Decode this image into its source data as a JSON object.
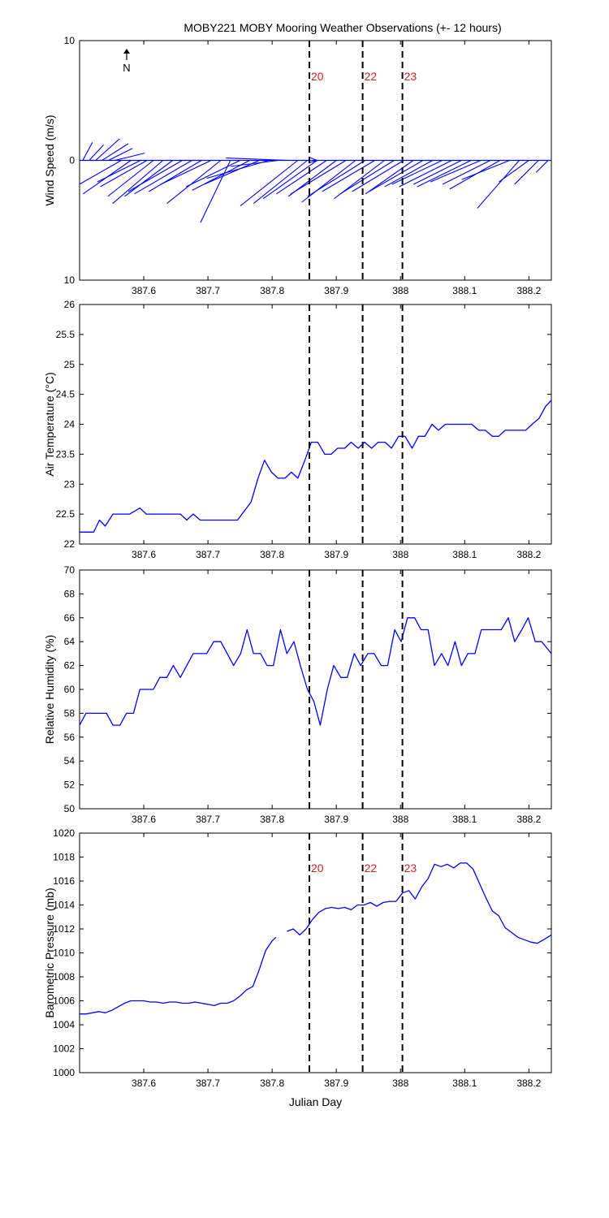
{
  "title": "MOBY221 MOBY Mooring Weather Observations (+- 12 hours)",
  "colors": {
    "series": "#0000ff",
    "event_label": "#cc2222",
    "axes": "#000000"
  },
  "chart_data": [
    {
      "id": "wind",
      "type": "line",
      "ylabel": "Wind Speed (m/s)",
      "xlabel": "",
      "xlim": [
        387.5,
        388.235
      ],
      "ylim": [
        -10,
        10
      ],
      "yticks": [
        -10,
        0,
        10
      ],
      "ytick_labels": [
        "10",
        "0",
        "10"
      ],
      "xticks": [
        387.6,
        387.7,
        387.8,
        387.9,
        388.0,
        388.1,
        388.2
      ],
      "xtick_labels": [
        "387.6",
        "387.7",
        "387.8",
        "387.9",
        "388",
        "388.1",
        "388.2"
      ],
      "north_label": "N",
      "event_lines": [
        {
          "x": 387.858,
          "label": "20"
        },
        {
          "x": 387.941,
          "label": "22"
        },
        {
          "x": 388.003,
          "label": "23"
        }
      ],
      "vectors": [
        {
          "x": 387.505,
          "u": -0.8,
          "v": 1.5
        },
        {
          "x": 387.515,
          "u": -1.2,
          "v": 1.3
        },
        {
          "x": 387.525,
          "u": -2.0,
          "v": 1.8
        },
        {
          "x": 387.535,
          "u": -2.2,
          "v": 1.4
        },
        {
          "x": 387.545,
          "u": -2.0,
          "v": 1.0
        },
        {
          "x": 387.555,
          "u": -2.5,
          "v": 0.6
        },
        {
          "x": 387.565,
          "u": 3.5,
          "v": -2.0
        },
        {
          "x": 387.58,
          "u": 4.0,
          "v": -2.8
        },
        {
          "x": 387.595,
          "u": 3.6,
          "v": -1.8
        },
        {
          "x": 387.605,
          "u": 3.9,
          "v": -2.2
        },
        {
          "x": 387.615,
          "u": 3.8,
          "v": -3.0
        },
        {
          "x": 387.63,
          "u": 4.2,
          "v": -3.6
        },
        {
          "x": 387.645,
          "u": 4.0,
          "v": -3.0
        },
        {
          "x": 387.66,
          "u": 4.5,
          "v": -2.6
        },
        {
          "x": 387.675,
          "u": 4.8,
          "v": -2.8
        },
        {
          "x": 387.69,
          "u": 4.4,
          "v": -2.6
        },
        {
          "x": 387.705,
          "u": 4.2,
          "v": -2.0
        },
        {
          "x": 387.72,
          "u": 4.5,
          "v": -3.6
        },
        {
          "x": 387.735,
          "u": 2.5,
          "v": -5.2
        },
        {
          "x": 387.75,
          "u": 4.5,
          "v": -2.2
        },
        {
          "x": 387.765,
          "u": 4.8,
          "v": -2.5
        },
        {
          "x": 387.78,
          "u": 4.6,
          "v": -2.0
        },
        {
          "x": 387.795,
          "u": 5.2,
          "v": -1.5
        },
        {
          "x": 387.81,
          "u": 4.0,
          "v": -0.5
        },
        {
          "x": 387.825,
          "u": 5.2,
          "v": 0.2
        },
        {
          "x": 387.84,
          "u": 4.8,
          "v": -3.8
        },
        {
          "x": 387.855,
          "u": 4.5,
          "v": -3.6
        },
        {
          "x": 387.87,
          "u": 4.5,
          "v": -3.2
        },
        {
          "x": 387.885,
          "u": 4.2,
          "v": -2.8
        },
        {
          "x": 387.9,
          "u": 4.0,
          "v": -3.0
        },
        {
          "x": 387.915,
          "u": 4.6,
          "v": -2.8
        },
        {
          "x": 387.93,
          "u": 4.5,
          "v": -3.5
        },
        {
          "x": 387.945,
          "u": 4.8,
          "v": -3.0
        },
        {
          "x": 387.96,
          "u": 4.4,
          "v": -2.6
        },
        {
          "x": 387.975,
          "u": 4.2,
          "v": -3.2
        },
        {
          "x": 387.99,
          "u": 4.5,
          "v": -2.8
        },
        {
          "x": 388.005,
          "u": 4.3,
          "v": -2.6
        },
        {
          "x": 388.02,
          "u": 4.0,
          "v": -2.8
        },
        {
          "x": 388.035,
          "u": 4.5,
          "v": -2.6
        },
        {
          "x": 388.05,
          "u": 4.0,
          "v": -2.2
        },
        {
          "x": 388.065,
          "u": 4.2,
          "v": -2.0
        },
        {
          "x": 388.08,
          "u": 4.4,
          "v": -2.2
        },
        {
          "x": 388.095,
          "u": 4.0,
          "v": -2.0
        },
        {
          "x": 388.11,
          "u": 4.5,
          "v": -2.2
        },
        {
          "x": 388.125,
          "u": 4.2,
          "v": -1.8
        },
        {
          "x": 388.14,
          "u": 4.0,
          "v": -2.0
        },
        {
          "x": 388.155,
          "u": 4.2,
          "v": -2.4
        },
        {
          "x": 388.17,
          "u": 4.0,
          "v": -1.6
        },
        {
          "x": 388.185,
          "u": 3.5,
          "v": -4.0
        },
        {
          "x": 388.2,
          "u": 2.5,
          "v": -1.8
        },
        {
          "x": 388.215,
          "u": 2.0,
          "v": -2.0
        },
        {
          "x": 388.23,
          "u": 1.0,
          "v": -1.0
        }
      ]
    },
    {
      "id": "airtemp",
      "type": "line",
      "ylabel": "Air Temperature (°C)",
      "xlabel": "",
      "xlim": [
        387.5,
        388.235
      ],
      "ylim": [
        22,
        26
      ],
      "yticks": [
        22,
        22.5,
        23,
        23.5,
        24,
        24.5,
        25,
        25.5,
        26
      ],
      "ytick_labels": [
        "22",
        "22.5",
        "23",
        "23.5",
        "24",
        "24.5",
        "25",
        "25.5",
        "26"
      ],
      "xticks": [
        387.6,
        387.7,
        387.8,
        387.9,
        388.0,
        388.1,
        388.2
      ],
      "xtick_labels": [
        "387.6",
        "387.7",
        "387.8",
        "387.9",
        "388",
        "388.1",
        "388.2"
      ],
      "event_lines": [
        {
          "x": 387.858
        },
        {
          "x": 387.941
        },
        {
          "x": 388.003
        }
      ],
      "x": [
        387.5,
        387.522,
        387.531,
        387.54,
        387.552,
        387.563,
        387.578,
        387.594,
        387.604,
        387.615,
        387.626,
        387.646,
        387.657,
        387.667,
        387.677,
        387.688,
        387.746,
        387.767,
        387.778,
        387.788,
        387.799,
        387.809,
        387.82,
        387.83,
        387.84,
        387.851,
        387.861,
        387.871,
        387.882,
        387.892,
        387.902,
        387.913,
        387.923,
        387.934,
        387.944,
        387.955,
        387.965,
        387.976,
        387.986,
        387.997,
        388.007,
        388.018,
        388.028,
        388.038,
        388.049,
        388.059,
        388.07,
        388.08,
        388.091,
        388.111,
        388.122,
        388.132,
        388.143,
        388.153,
        388.163,
        388.174,
        388.195,
        388.205,
        388.216,
        388.226,
        388.235
      ],
      "y": [
        22.2,
        22.2,
        22.4,
        22.3,
        22.5,
        22.5,
        22.5,
        22.6,
        22.5,
        22.5,
        22.5,
        22.5,
        22.5,
        22.4,
        22.5,
        22.4,
        22.4,
        22.7,
        23.1,
        23.4,
        23.2,
        23.1,
        23.1,
        23.2,
        23.1,
        23.4,
        23.7,
        23.7,
        23.5,
        23.5,
        23.6,
        23.6,
        23.7,
        23.6,
        23.7,
        23.6,
        23.7,
        23.7,
        23.6,
        23.8,
        23.8,
        23.6,
        23.8,
        23.8,
        24.0,
        23.9,
        24.0,
        24.0,
        24.0,
        24.0,
        23.9,
        23.9,
        23.8,
        23.8,
        23.9,
        23.9,
        23.9,
        24.0,
        24.1,
        24.3,
        24.4
      ]
    },
    {
      "id": "rh",
      "type": "line",
      "ylabel": "Relative Humidity (%)",
      "xlabel": "",
      "xlim": [
        387.5,
        388.235
      ],
      "ylim": [
        50,
        70
      ],
      "yticks": [
        50,
        52,
        54,
        56,
        58,
        60,
        62,
        64,
        66,
        68,
        70
      ],
      "ytick_labels": [
        "50",
        "52",
        "54",
        "56",
        "58",
        "60",
        "62",
        "64",
        "66",
        "68",
        "70"
      ],
      "xticks": [
        387.6,
        387.7,
        387.8,
        387.9,
        388.0,
        388.1,
        388.2
      ],
      "xtick_labels": [
        "387.6",
        "387.7",
        "387.8",
        "387.9",
        "388",
        "388.1",
        "388.2"
      ],
      "event_lines": [
        {
          "x": 387.858
        },
        {
          "x": 387.941
        },
        {
          "x": 388.003
        }
      ],
      "x": [
        387.5,
        387.51,
        387.542,
        387.552,
        387.563,
        387.573,
        387.584,
        387.594,
        387.615,
        387.625,
        387.636,
        387.646,
        387.657,
        387.677,
        387.698,
        387.709,
        387.72,
        387.74,
        387.751,
        387.761,
        387.771,
        387.782,
        387.792,
        387.802,
        387.813,
        387.823,
        387.834,
        387.844,
        387.855,
        387.865,
        387.875,
        387.886,
        387.896,
        387.907,
        387.917,
        387.928,
        387.938,
        387.949,
        387.959,
        387.97,
        387.98,
        387.991,
        388.001,
        388.011,
        388.022,
        388.032,
        388.043,
        388.053,
        388.064,
        388.074,
        388.085,
        388.095,
        388.105,
        388.116,
        388.126,
        388.147,
        388.157,
        388.168,
        388.178,
        388.189,
        388.199,
        388.21,
        388.22,
        388.235
      ],
      "y": [
        57,
        58,
        58,
        57,
        57,
        58,
        58,
        60,
        60,
        61,
        61,
        62,
        61,
        63,
        63,
        64,
        64,
        62,
        63,
        65,
        63,
        63,
        62,
        62,
        65,
        63,
        64,
        62,
        60,
        59,
        57,
        60,
        62,
        61,
        61,
        63,
        62,
        63,
        63,
        62,
        62,
        65,
        64,
        66,
        66,
        65,
        65,
        62,
        63,
        62,
        64,
        62,
        63,
        63,
        65,
        65,
        65,
        66,
        64,
        65,
        66,
        64,
        64,
        63
      ]
    },
    {
      "id": "baro",
      "type": "line",
      "ylabel": "Barometric Pressure (mb)",
      "xlabel": "Julian Day",
      "xlim": [
        387.5,
        388.235
      ],
      "ylim": [
        1000,
        1020
      ],
      "yticks": [
        1000,
        1002,
        1004,
        1006,
        1008,
        1010,
        1012,
        1014,
        1016,
        1018,
        1020
      ],
      "ytick_labels": [
        "1000",
        "1002",
        "1004",
        "1006",
        "1008",
        "1010",
        "1012",
        "1014",
        "1016",
        "1018",
        "1020"
      ],
      "xticks": [
        387.6,
        387.7,
        387.8,
        387.9,
        388.0,
        388.1,
        388.2
      ],
      "xtick_labels": [
        "387.6",
        "387.7",
        "387.8",
        "387.9",
        "388",
        "388.1",
        "388.2"
      ],
      "event_lines": [
        {
          "x": 387.858,
          "label": "20"
        },
        {
          "x": 387.941,
          "label": "22"
        },
        {
          "x": 388.003,
          "label": "23"
        }
      ],
      "segments": [
        {
          "x": [
            387.5,
            387.51,
            387.52,
            387.53,
            387.54,
            387.55,
            387.56,
            387.57,
            387.58,
            387.59,
            387.6,
            387.61,
            387.62,
            387.63,
            387.64,
            387.65,
            387.66,
            387.67,
            387.68,
            387.69,
            387.7,
            387.71,
            387.72,
            387.73,
            387.74,
            387.75,
            387.76,
            387.77,
            387.78,
            387.79,
            387.8,
            387.806
          ],
          "y": [
            1004.9,
            1004.9,
            1005.0,
            1005.1,
            1005.0,
            1005.2,
            1005.5,
            1005.8,
            1006.0,
            1006.0,
            1006.0,
            1005.9,
            1005.9,
            1005.8,
            1005.9,
            1005.9,
            1005.8,
            1005.8,
            1005.9,
            1005.8,
            1005.7,
            1005.6,
            1005.8,
            1005.8,
            1006.0,
            1006.4,
            1006.9,
            1007.2,
            1008.6,
            1010.2,
            1011.0,
            1011.3
          ]
        },
        {
          "x": [
            387.823,
            387.833,
            387.843,
            387.853,
            387.863,
            387.873,
            387.883,
            387.893,
            387.903,
            387.913,
            387.923,
            387.933,
            387.943,
            387.953,
            387.963,
            387.973,
            387.983,
            387.993,
            388.003,
            388.013,
            388.023,
            388.033,
            388.043,
            388.053,
            388.063,
            388.073,
            388.083,
            388.093,
            388.103,
            388.113,
            388.123,
            388.133,
            388.143,
            388.153,
            388.163,
            388.173,
            388.183,
            388.193,
            388.203,
            388.213,
            388.223,
            388.235
          ],
          "y": [
            1011.8,
            1012.0,
            1011.5,
            1012.0,
            1012.8,
            1013.4,
            1013.7,
            1013.8,
            1013.7,
            1013.8,
            1013.6,
            1014.0,
            1014.0,
            1014.2,
            1013.9,
            1014.2,
            1014.3,
            1014.3,
            1015.0,
            1015.2,
            1014.5,
            1015.5,
            1016.2,
            1017.4,
            1017.2,
            1017.4,
            1017.1,
            1017.5,
            1017.5,
            1017.0,
            1015.8,
            1014.6,
            1013.5,
            1013.1,
            1012.1,
            1011.7,
            1011.3,
            1011.1,
            1010.9,
            1010.8,
            1011.1,
            1011.5
          ]
        }
      ]
    }
  ]
}
